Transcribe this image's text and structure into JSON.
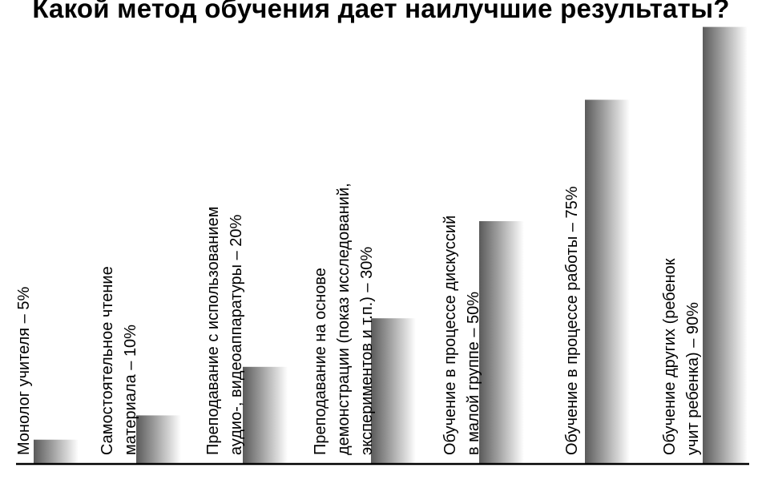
{
  "chart_data": {
    "type": "bar",
    "title": "Какой метод обучения дает наилучшие результаты?",
    "xlabel": "",
    "ylabel": "",
    "ylim": [
      0,
      100
    ],
    "grid": false,
    "legend": "none",
    "bar_gradient": [
      "#5a5a5a",
      "#ffffff"
    ],
    "baseline_color": "#000000",
    "categories": [
      {
        "lines": [
          "Монолог учителя – 5%"
        ]
      },
      {
        "lines": [
          "Самостоятельное чтение",
          "материала – 10%"
        ]
      },
      {
        "lines": [
          "Преподавание с использованием",
          "аудио-, видеоаппаратуры – 20%"
        ]
      },
      {
        "lines": [
          "Преподавание на основе",
          "демонстрации (показ исследований,",
          "экспериментов и т.п.) – 30%"
        ]
      },
      {
        "lines": [
          "Обучение в процессе дискуссий",
          "в малой группе – 50%"
        ]
      },
      {
        "lines": [
          "Обучение в процессе работы – 75%"
        ]
      },
      {
        "lines": [
          "Обучение других (ребенок",
          "учит ребенка) – 90%"
        ]
      }
    ],
    "values": [
      5,
      10,
      20,
      30,
      50,
      75,
      90
    ]
  }
}
